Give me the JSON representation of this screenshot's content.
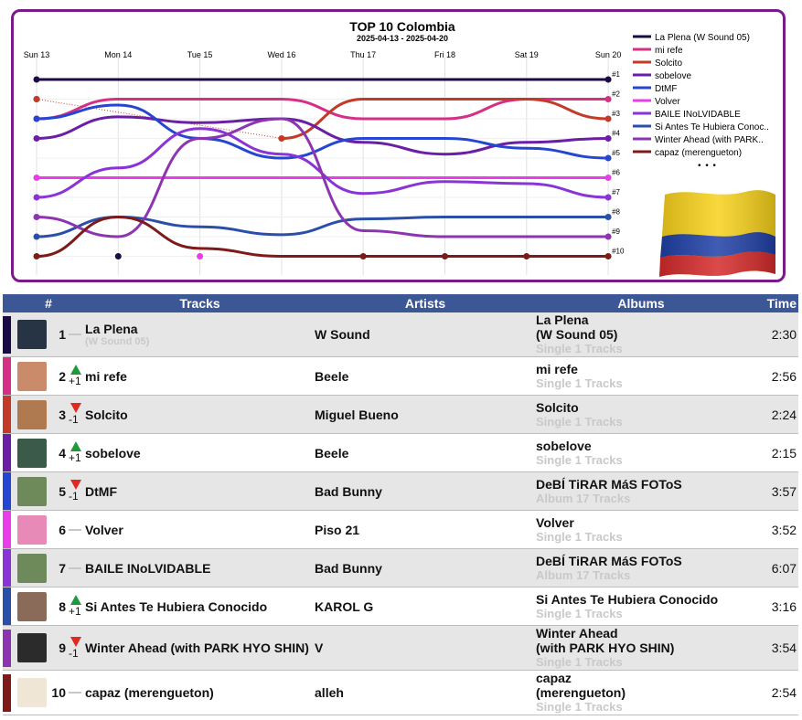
{
  "chart": {
    "title": "TOP 10 Colombia",
    "subtitle": "2025-04-13 - 2025-04-20",
    "days": [
      "Sun 13",
      "Mon 14",
      "Tue 15",
      "Wed 16",
      "Thu 17",
      "Fri 18",
      "Sat 19",
      "Sun 20"
    ],
    "rank_labels": [
      "#1",
      "#2",
      "#3",
      "#4",
      "#5",
      "#6",
      "#7",
      "#8",
      "#9",
      "#10"
    ],
    "more": "• • •",
    "legend": [
      {
        "name": "La Plena (W Sound 05)",
        "color": "#1a0b45"
      },
      {
        "name": "mi refe",
        "color": "#d62f86"
      },
      {
        "name": "Solcito",
        "color": "#c23b28"
      },
      {
        "name": "sobelove",
        "color": "#6a1fa6"
      },
      {
        "name": "DtMF",
        "color": "#2446d0"
      },
      {
        "name": "Volver",
        "color": "#e83de8"
      },
      {
        "name": "BAILE INoLVIDABLE",
        "color": "#8a33d6"
      },
      {
        "name": "Si Antes Te Hubiera Conoc..",
        "color": "#2a4fa8"
      },
      {
        "name": "Winter Ahead (with PARK..",
        "color": "#8d35b0"
      },
      {
        "name": "capaz (merengueton)",
        "color": "#7d1b1b"
      }
    ],
    "series_ranks": [
      [
        1,
        1,
        1,
        1,
        1,
        1,
        1,
        1
      ],
      [
        3,
        2,
        2,
        2,
        3,
        3,
        2,
        2
      ],
      [
        2,
        null,
        null,
        4,
        2,
        2,
        2,
        3
      ],
      [
        4,
        2.9,
        3.2,
        3,
        4.2,
        4.8,
        4.2,
        4
      ],
      [
        3,
        2.3,
        4,
        5,
        4,
        4,
        4.5,
        5
      ],
      [
        6,
        6,
        6,
        6,
        6,
        6,
        6,
        6
      ],
      [
        7,
        5.5,
        3.5,
        4.8,
        6.8,
        6.2,
        6.3,
        7
      ],
      [
        9,
        8,
        8.5,
        8.9,
        8.1,
        8,
        8,
        8
      ],
      [
        8,
        9,
        4,
        3,
        8.7,
        9,
        9,
        9
      ],
      [
        10,
        8,
        9.6,
        10,
        10,
        10,
        10,
        10
      ]
    ]
  },
  "table": {
    "headers": {
      "num": "#",
      "tracks": "Tracks",
      "artists": "Artists",
      "albums": "Albums",
      "time": "Time"
    },
    "rows": [
      {
        "stripe": "#1a0b45",
        "cover": "#273444",
        "rank": "1",
        "move": "",
        "dir": "same",
        "title": "La Plena",
        "title_sub": "(W Sound 05)",
        "artist": "W Sound",
        "album": "La Plena",
        "album2": "(W Sound 05)",
        "album_info": "Single 1 Tracks",
        "time": "2:30"
      },
      {
        "stripe": "#d62f86",
        "cover": "#c98b6a",
        "rank": "2",
        "move": "+1",
        "dir": "up",
        "title": "mi refe",
        "title_sub": "",
        "artist": "Beele",
        "album": "mi refe",
        "album2": "",
        "album_info": "Single 1 Tracks",
        "time": "2:56"
      },
      {
        "stripe": "#c23b28",
        "cover": "#b07a50",
        "rank": "3",
        "move": "-1",
        "dir": "down",
        "title": "Solcito",
        "title_sub": "",
        "artist": "Miguel Bueno",
        "album": "Solcito",
        "album2": "",
        "album_info": "Single 1 Tracks",
        "time": "2:24"
      },
      {
        "stripe": "#6a1fa6",
        "cover": "#3c5a4a",
        "rank": "4",
        "move": "+1",
        "dir": "up",
        "title": "sobelove",
        "title_sub": "",
        "artist": "Beele",
        "album": "sobelove",
        "album2": "",
        "album_info": "Single 1 Tracks",
        "time": "2:15"
      },
      {
        "stripe": "#2446d0",
        "cover": "#6f8a5a",
        "rank": "5",
        "move": "-1",
        "dir": "down",
        "title": "DtMF",
        "title_sub": "",
        "artist": "Bad Bunny",
        "album": "DeBÍ TiRAR MáS FOToS",
        "album2": "",
        "album_info": "Album 17 Tracks",
        "time": "3:57"
      },
      {
        "stripe": "#e83de8",
        "cover": "#e88ab8",
        "rank": "6",
        "move": "",
        "dir": "same",
        "title": "Volver",
        "title_sub": "",
        "artist": "Piso 21",
        "album": "Volver",
        "album2": "",
        "album_info": "Single 1 Tracks",
        "time": "3:52"
      },
      {
        "stripe": "#8a33d6",
        "cover": "#6f8a5a",
        "rank": "7",
        "move": "",
        "dir": "same",
        "title": "BAILE INoLVIDABLE",
        "title_sub": "",
        "artist": "Bad Bunny",
        "album": "DeBÍ TiRAR MáS FOToS",
        "album2": "",
        "album_info": "Album 17 Tracks",
        "time": "6:07"
      },
      {
        "stripe": "#2a4fa8",
        "cover": "#8a6a58",
        "rank": "8",
        "move": "+1",
        "dir": "up",
        "title": "Si Antes Te Hubiera Conocido",
        "title_sub": "",
        "artist": "KAROL G",
        "album": "Si Antes Te Hubiera Conocido",
        "album2": "",
        "album_info": "Single 1 Tracks",
        "time": "3:16"
      },
      {
        "stripe": "#8d35b0",
        "cover": "#2b2b2b",
        "rank": "9",
        "move": "-1",
        "dir": "down",
        "title": "Winter Ahead (with PARK HYO SHIN)",
        "title_sub": "",
        "artist": "V",
        "album": "Winter Ahead",
        "album2": "(with PARK HYO SHIN)",
        "album_info": "Single 1 Tracks",
        "time": "3:54"
      },
      {
        "stripe": "#7d1b1b",
        "cover": "#efe6d6",
        "rank": "10",
        "move": "",
        "dir": "same",
        "title": "capaz (merengueton)",
        "title_sub": "",
        "artist": "alleh",
        "album": "capaz",
        "album2": "(merengueton)",
        "album_info": "Single 1 Tracks",
        "time": "2:54"
      }
    ]
  }
}
